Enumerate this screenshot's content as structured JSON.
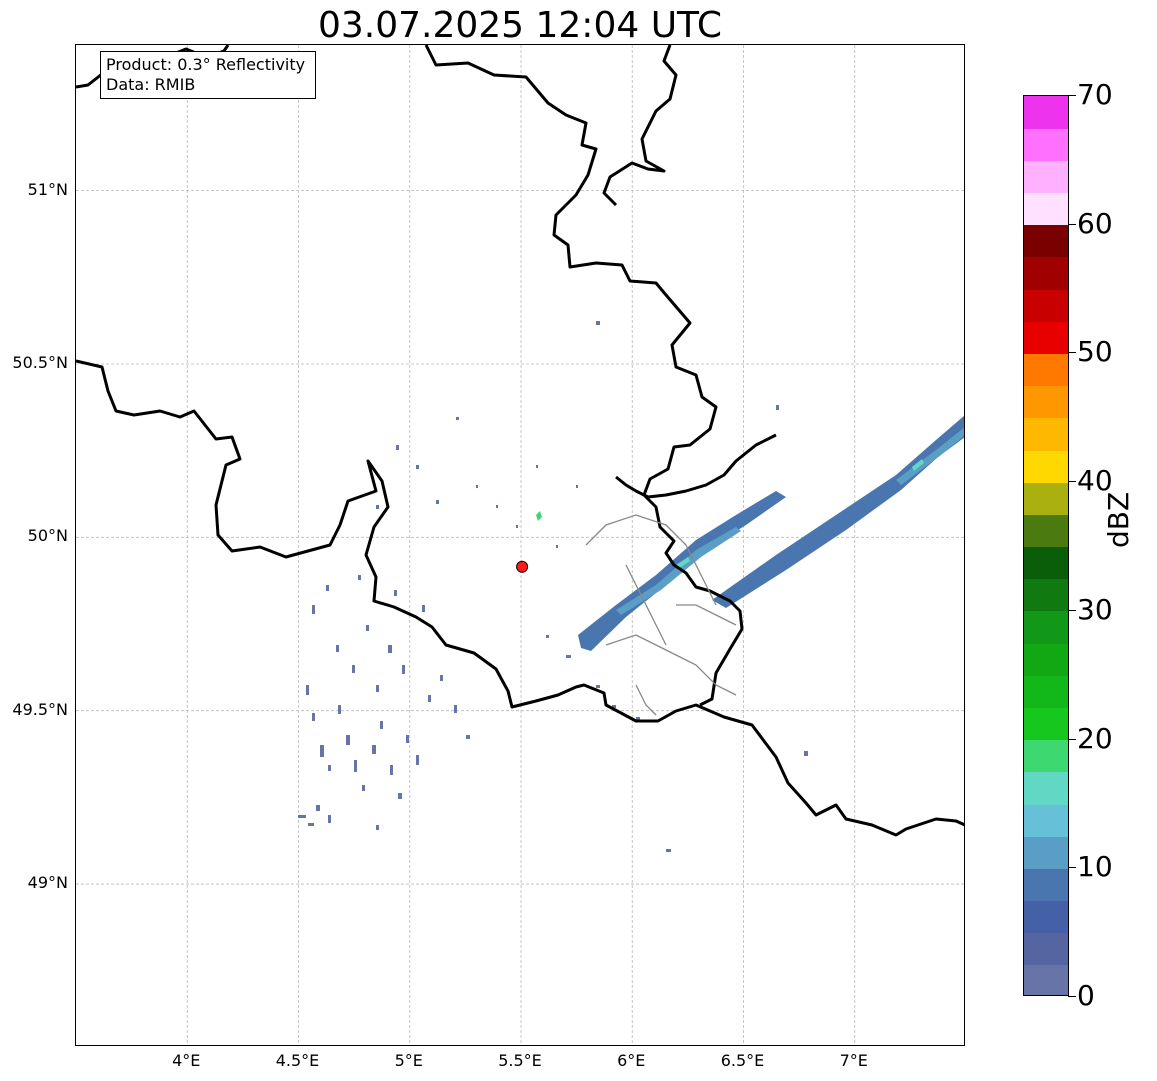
{
  "map": {
    "title": "03.07.2025 12:04 UTC",
    "info": {
      "product": "Product: 0.3° Reflectivity",
      "data": "Data: RMIB"
    },
    "extent": {
      "lon": [
        3.5,
        7.5
      ],
      "lat": [
        48.53,
        51.42
      ]
    },
    "gridlines": true,
    "lat_ticks": [
      {
        "value": 51.0,
        "label": "51°N"
      },
      {
        "value": 50.5,
        "label": "50.5°N"
      },
      {
        "value": 50.0,
        "label": "50°N"
      },
      {
        "value": 49.5,
        "label": "49.5°N"
      },
      {
        "value": 49.0,
        "label": "49°N"
      }
    ],
    "lon_ticks": [
      {
        "value": 4.0,
        "label": "4°E"
      },
      {
        "value": 4.5,
        "label": "4.5°E"
      },
      {
        "value": 5.0,
        "label": "5°E"
      },
      {
        "value": 5.5,
        "label": "5.5°E"
      },
      {
        "value": 6.0,
        "label": "6°E"
      },
      {
        "value": 6.5,
        "label": "6.5°E"
      },
      {
        "value": 7.0,
        "label": "7°E"
      }
    ],
    "radar_site": {
      "lon": 5.505,
      "lat": 49.915,
      "color": "#ff1a1a"
    }
  },
  "colorbar": {
    "label": "dBZ",
    "min": 0,
    "max": 70,
    "ticks": [
      {
        "value": 0,
        "label": "0"
      },
      {
        "value": 10,
        "label": "10"
      },
      {
        "value": 20,
        "label": "20"
      },
      {
        "value": 30,
        "label": "30"
      },
      {
        "value": 40,
        "label": "40"
      },
      {
        "value": 50,
        "label": "50"
      },
      {
        "value": 60,
        "label": "60"
      },
      {
        "value": 70,
        "label": "70"
      }
    ],
    "colors": [
      "#6674a8",
      "#5565a2",
      "#4460a6",
      "#4a76b0",
      "#5a9ec6",
      "#66c0d8",
      "#60d8c4",
      "#3ed870",
      "#16c81e",
      "#12b81a",
      "#12a814",
      "#129818",
      "#107a10",
      "#0a5e0a",
      "#4a7a10",
      "#aab010",
      "#ffd800",
      "#ffb800",
      "#ff9800",
      "#ff7800",
      "#e80000",
      "#c80000",
      "#a00000",
      "#7a0000",
      "#ffe0ff",
      "#ffb0ff",
      "#ff70ff",
      "#ee33ee"
    ]
  }
}
